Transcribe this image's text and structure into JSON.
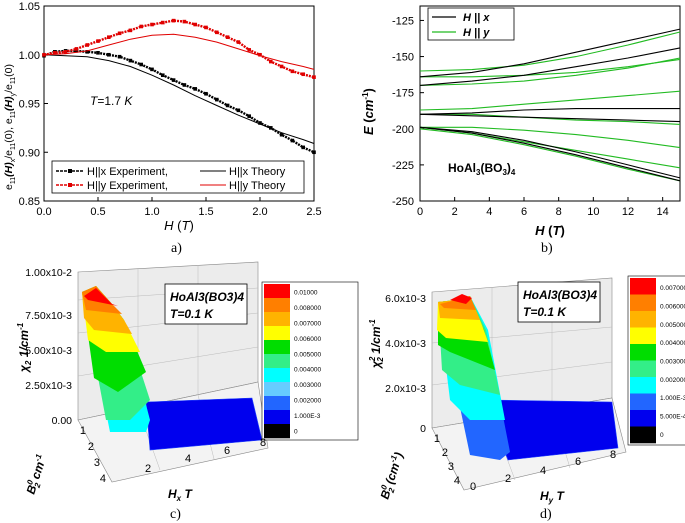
{
  "chart_data": [
    {
      "panel": "a",
      "caption": "a)",
      "type": "line",
      "xlabel": "H (T)",
      "xlabel_parts": [
        "H",
        " (",
        "T",
        ")"
      ],
      "ylabel": "e11(H)x/e11(0), e11(H)y/e11(0)",
      "ylabel_parts": [
        "e",
        "11",
        "(H)",
        "x",
        "/e",
        "11",
        "(0),  e",
        "11",
        "(H)",
        "y",
        "/e",
        "11",
        "(0)"
      ],
      "xlim": [
        0.0,
        2.5
      ],
      "ylim": [
        0.85,
        1.05
      ],
      "xticks": [
        "0.0",
        "0.5",
        "1.0",
        "1.5",
        "2.0",
        "2.5"
      ],
      "yticks": [
        "0.85",
        "0.90",
        "0.95",
        "1.00",
        "1.05"
      ],
      "annotation": "T=1.7 K",
      "annotation_parts": [
        "T",
        "=1.7 ",
        "K"
      ],
      "legend": [
        "H||x Experiment,",
        "H||x Theory",
        "H||y Experiment,",
        "H||y Theory"
      ],
      "series": [
        {
          "name": "H||x Experiment",
          "color": "#000000",
          "style": "marker",
          "x": [
            0.0,
            0.1,
            0.2,
            0.3,
            0.4,
            0.5,
            0.6,
            0.7,
            0.8,
            0.9,
            1.0,
            1.1,
            1.2,
            1.3,
            1.4,
            1.5,
            1.6,
            1.7,
            1.8,
            1.9,
            2.0,
            2.1,
            2.2,
            2.3,
            2.4,
            2.5
          ],
          "y": [
            0.999,
            1.003,
            1.004,
            1.004,
            1.003,
            1.002,
            1.0,
            0.998,
            0.994,
            0.99,
            0.985,
            0.979,
            0.974,
            0.969,
            0.965,
            0.96,
            0.954,
            0.948,
            0.943,
            0.937,
            0.93,
            0.925,
            0.918,
            0.912,
            0.905,
            0.9
          ]
        },
        {
          "name": "H||x Theory",
          "color": "#000000",
          "style": "line",
          "x": [
            0.0,
            0.2,
            0.4,
            0.6,
            0.8,
            1.0,
            1.2,
            1.4,
            1.6,
            1.8,
            2.0,
            2.2,
            2.4,
            2.5
          ],
          "y": [
            1.0,
            0.999,
            0.998,
            0.994,
            0.988,
            0.979,
            0.969,
            0.958,
            0.948,
            0.938,
            0.929,
            0.92,
            0.913,
            0.909
          ]
        },
        {
          "name": "H||y Experiment",
          "color": "#e00000",
          "style": "marker",
          "x": [
            0.0,
            0.1,
            0.2,
            0.3,
            0.4,
            0.5,
            0.6,
            0.7,
            0.8,
            0.9,
            1.0,
            1.1,
            1.2,
            1.3,
            1.4,
            1.5,
            1.6,
            1.7,
            1.8,
            1.9,
            2.0,
            2.1,
            2.2,
            2.3,
            2.4,
            2.5
          ],
          "y": [
            1.0,
            1.002,
            1.003,
            1.006,
            1.01,
            1.014,
            1.018,
            1.022,
            1.025,
            1.029,
            1.031,
            1.033,
            1.035,
            1.034,
            1.031,
            1.028,
            1.023,
            1.018,
            1.013,
            1.005,
            1.0,
            0.993,
            0.988,
            0.983,
            0.98,
            0.977
          ]
        },
        {
          "name": "H||y Theory",
          "color": "#e00000",
          "style": "line",
          "x": [
            0.0,
            0.2,
            0.4,
            0.6,
            0.8,
            1.0,
            1.2,
            1.4,
            1.6,
            1.8,
            2.0,
            2.2,
            2.4,
            2.5
          ],
          "y": [
            1.0,
            1.001,
            1.004,
            1.01,
            1.016,
            1.02,
            1.021,
            1.018,
            1.013,
            1.006,
            0.999,
            0.993,
            0.988,
            0.985
          ]
        }
      ]
    },
    {
      "panel": "b",
      "caption": "b)",
      "type": "line",
      "xlabel": "H (T)",
      "xlabel_parts": [
        "H",
        " (",
        "T",
        ")"
      ],
      "ylabel": "E (cm-1)",
      "ylabel_parts": [
        "E",
        " (",
        "cm",
        "-1",
        ")"
      ],
      "xlim": [
        0,
        15
      ],
      "ylim": [
        -250,
        -115
      ],
      "xticks": [
        "0",
        "2",
        "4",
        "6",
        "8",
        "10",
        "12",
        "14"
      ],
      "yticks": [
        "-250",
        "-225",
        "-200",
        "-175",
        "-150",
        "-125"
      ],
      "annotation": "HoAl3(BO3)4",
      "annotation_parts": [
        "HoAl",
        "3",
        "(BO",
        "3",
        ")",
        "4"
      ],
      "legend": [
        "H || x",
        "H || y"
      ],
      "colors": {
        "x": "#000000",
        "y": "#22bb22"
      },
      "x": [
        0,
        3,
        6,
        9,
        12,
        15
      ],
      "series_x": [
        [
          -164,
          -161,
          -155,
          -147,
          -139,
          -131
        ],
        [
          -170,
          -167,
          -163,
          -157,
          -151,
          -144
        ],
        [
          -190,
          -189,
          -187,
          -186,
          -186,
          -186
        ],
        [
          -190,
          -191,
          -192,
          -193,
          -194,
          -195
        ],
        [
          -199,
          -202,
          -208,
          -216,
          -225,
          -234
        ],
        [
          -199,
          -203,
          -210,
          -218,
          -227,
          -236
        ]
      ],
      "series_y": [
        [
          -160,
          -159,
          -156,
          -150,
          -142,
          -133
        ],
        [
          -164,
          -164,
          -163,
          -161,
          -157,
          -152
        ],
        [
          -170,
          -169,
          -167,
          -163,
          -158,
          -151
        ],
        [
          -187,
          -186,
          -183,
          -180,
          -177,
          -174
        ],
        [
          -190,
          -190,
          -192,
          -194,
          -195,
          -197
        ],
        [
          -199,
          -199,
          -201,
          -204,
          -208,
          -213
        ],
        [
          -199,
          -203,
          -209,
          -215,
          -221,
          -227
        ],
        [
          -200,
          -204,
          -211,
          -219,
          -228,
          -236
        ]
      ]
    },
    {
      "panel": "c",
      "caption": "c)",
      "type": "surface3d",
      "zlabel": "χ2 1/cm-1",
      "zlabel_parts": [
        "χ",
        "2",
        "  1/cm",
        "-1"
      ],
      "xlabel": "Hx T",
      "xlabel_parts": [
        "H",
        "x",
        " T"
      ],
      "ylabel": "B02 cm-1",
      "ylabel_parts": [
        "B",
        "0",
        "2",
        " cm",
        "-1"
      ],
      "zticks": [
        "0.00",
        "2.50x10-3",
        "5.00x10-3",
        "7.50x10-3",
        "1.00x10-2"
      ],
      "xticks": [
        "2",
        "4",
        "6",
        "8"
      ],
      "yticks": [
        "1",
        "2",
        "3",
        "4"
      ],
      "annotation": [
        "HoAl3(BO3)4",
        "T=0.1 K"
      ],
      "colorbar": [
        "0.01000",
        "0.008000",
        "0.007000",
        "0.006000",
        "0.005000",
        "0.004000",
        "0.003000",
        "0.002000",
        "1.000E-3",
        "0"
      ],
      "colorbar_colors": [
        "#ff0000",
        "#ff7f00",
        "#ffb300",
        "#ffff00",
        "#00dd00",
        "#33ee88",
        "#00ffff",
        "#66ccff",
        "#2266ff",
        "#0000ee",
        "#000000"
      ]
    },
    {
      "panel": "d",
      "caption": "d)",
      "type": "surface3d",
      "zlabel": "χ22 1/cm-1",
      "zlabel_parts": [
        "χ",
        "2",
        "2",
        " 1/cm",
        "-1"
      ],
      "xlabel": "Hy T",
      "xlabel_parts": [
        "H",
        "y",
        " T"
      ],
      "ylabel": "B02 (cm-1)",
      "ylabel_parts": [
        "B",
        "0",
        "2",
        " (cm",
        "-1",
        ")"
      ],
      "zticks": [
        "0",
        "2.0x10-3",
        "4.0x10-3",
        "6.0x10-3"
      ],
      "xticks": [
        "0",
        "2",
        "4",
        "6",
        "8"
      ],
      "yticks": [
        "1",
        "2",
        "3",
        "4"
      ],
      "annotation": [
        "HoAl3(BO3)4",
        "T=0.1 K"
      ],
      "colorbar": [
        "0.007000",
        "0.006000",
        "0.005000",
        "0.004000",
        "0.003000",
        "0.002000",
        "1.000E-3",
        "5.000E-4",
        "0"
      ],
      "colorbar_colors": [
        "#ff0000",
        "#ff7f00",
        "#ffb300",
        "#ffff00",
        "#00dd00",
        "#33ee88",
        "#00ffff",
        "#2266ff",
        "#0000ee",
        "#000000"
      ]
    }
  ]
}
